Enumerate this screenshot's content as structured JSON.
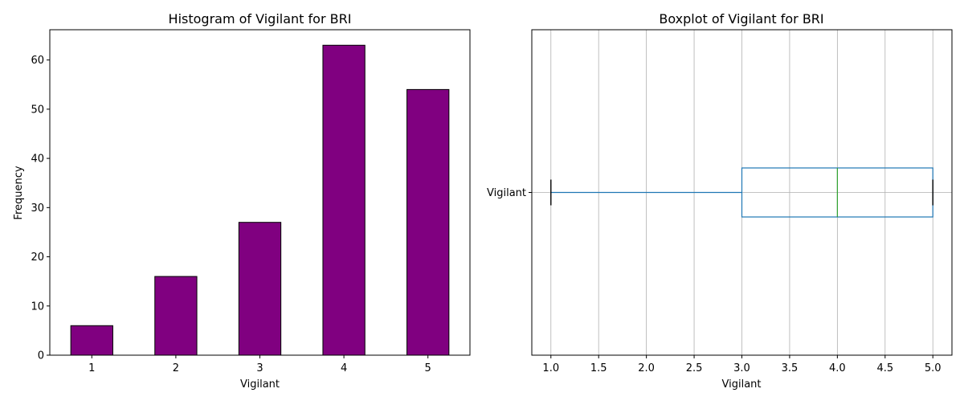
{
  "chart_data": [
    {
      "type": "bar",
      "title": "Histogram of Vigilant for BRI",
      "xlabel": "Vigilant",
      "ylabel": "Frequency",
      "categories": [
        "1",
        "2",
        "3",
        "4",
        "5"
      ],
      "values": [
        6,
        16,
        27,
        63,
        54
      ],
      "ylim": [
        0,
        66.15
      ],
      "yticks": [
        0,
        10,
        20,
        30,
        40,
        50,
        60
      ],
      "grid": false,
      "bar_color": "#800080",
      "edge_color": "#000000"
    },
    {
      "type": "boxplot",
      "title": "Boxplot of Vigilant for BRI",
      "xlabel": "Vigilant",
      "ylabel": "",
      "series": [
        {
          "name": "Vigilant",
          "whisker_low": 1.0,
          "q1": 3.0,
          "median": 4.0,
          "q3": 5.0,
          "whisker_high": 5.0
        }
      ],
      "xlim": [
        0.8,
        5.2
      ],
      "xticks": [
        "1.0",
        "1.5",
        "2.0",
        "2.5",
        "3.0",
        "3.5",
        "4.0",
        "4.5",
        "5.0"
      ],
      "grid": true,
      "box_color": "#1f77b4",
      "median_color": "#2ca02c",
      "cap_color": "#000000",
      "grid_color": "#b0b0b0"
    }
  ]
}
